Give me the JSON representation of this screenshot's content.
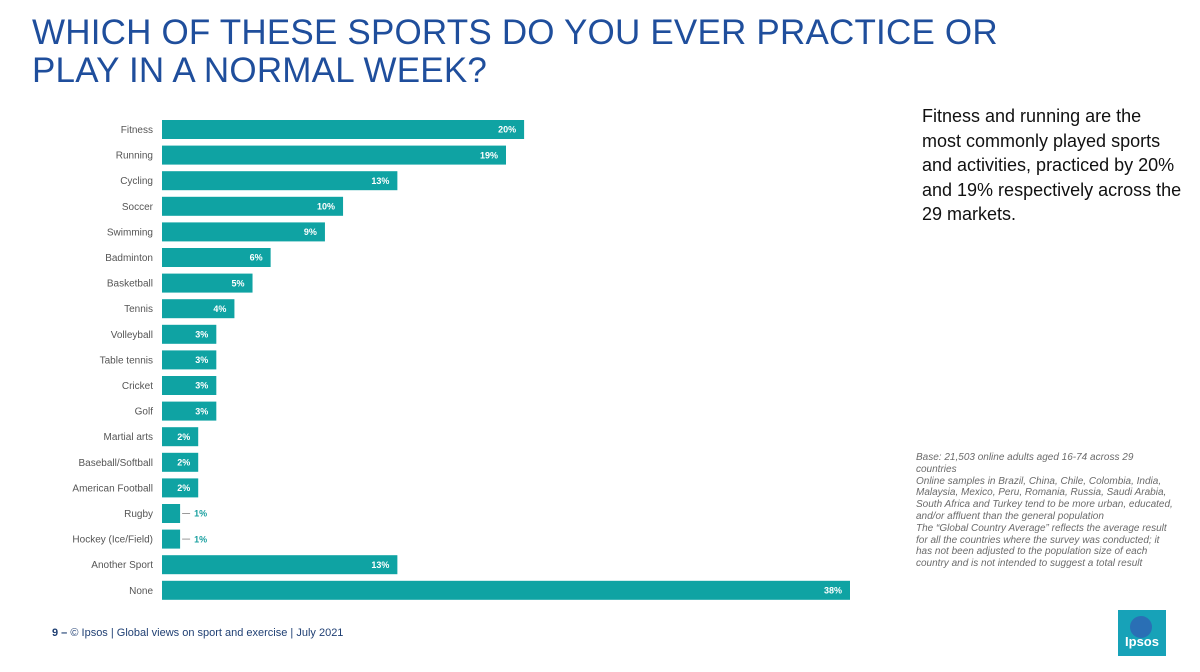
{
  "title": {
    "line1": "WHICH OF THESE SPORTS DO YOU EVER PRACTICE OR",
    "line2": "PLAY IN A NORMAL WEEK?"
  },
  "callout": "Fitness and running are the most commonly played sports and activities, practiced by 20% and 19% respectively across the 29 markets.",
  "base_note": {
    "p1": "Base: 21,503 online adults aged 16-74 across 29 countries",
    "p2": "Online samples in Brazil, China, Chile, Colombia, India, Malaysia, Mexico, Peru, Romania, Russia, Saudi Arabia, South Africa and Turkey tend to be more urban, educated, and/or affluent than the general population",
    "p3": "The “Global Country Average” reflects the average result for all the countries where the survey was conducted; it has not been adjusted to the population size of each country and is not intended to suggest a total result"
  },
  "footer": {
    "page": "9 –",
    "text": "© Ipsos | Global views on sport and exercise | July 2021"
  },
  "logo": {
    "text": "Ipsos",
    "color": "#17a2b8"
  },
  "colors": {
    "bar": "#0fa3a3",
    "title": "#1f4e9c"
  },
  "chart_data": {
    "type": "bar",
    "orientation": "horizontal",
    "title": "WHICH OF THESE SPORTS DO YOU EVER PRACTICE OR PLAY IN A NORMAL WEEK?",
    "xlabel": "",
    "ylabel": "",
    "xlim": [
      0,
      38
    ],
    "categories": [
      "Fitness",
      "Running",
      "Cycling",
      "Soccer",
      "Swimming",
      "Badminton",
      "Basketball",
      "Tennis",
      "Volleyball",
      "Table tennis",
      "Cricket",
      "Golf",
      "Martial arts",
      "Baseball/Softball",
      "American Football",
      "Rugby",
      "Hockey (Ice/Field)",
      "Another Sport",
      "None"
    ],
    "values": [
      20,
      19,
      13,
      10,
      9,
      6,
      5,
      4,
      3,
      3,
      3,
      3,
      2,
      2,
      2,
      1,
      1,
      13,
      38
    ],
    "labels": [
      "20%",
      "19%",
      "13%",
      "10%",
      "9%",
      "6%",
      "5%",
      "4%",
      "3%",
      "3%",
      "3%",
      "3%",
      "2%",
      "2%",
      "2%",
      "1%",
      "1%",
      "13%",
      "38%"
    ]
  }
}
